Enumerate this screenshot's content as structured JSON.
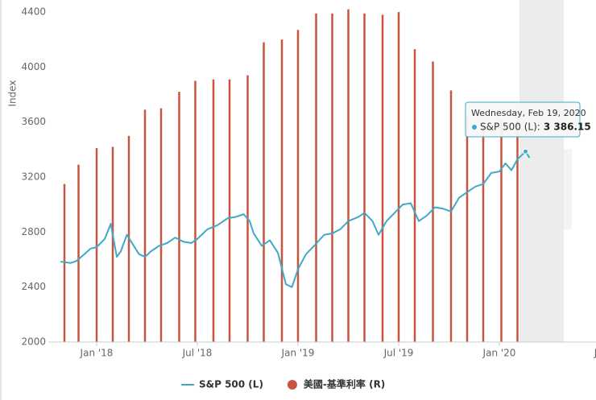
{
  "chart_data": {
    "type": "combo",
    "y_label": "Index",
    "grid": false,
    "xlim": [
      2017.82,
      2020.5
    ],
    "xticks": [
      {
        "value": 2018,
        "label": "Jan '18"
      },
      {
        "value": 2018.5,
        "label": "Jul '18"
      },
      {
        "value": 2019,
        "label": "Jan '19"
      },
      {
        "value": 2019.5,
        "label": "Jul '19"
      },
      {
        "value": 2020,
        "label": "Jan '20"
      },
      {
        "value": 2020.5,
        "label": "Jul"
      }
    ],
    "ylim": [
      2000,
      4400
    ],
    "yticks": [
      2000,
      2400,
      2800,
      3200,
      3600,
      4000,
      4400
    ],
    "series": [
      {
        "name": "S&P 500 (L)",
        "color": "#3fa9c8",
        "type": "line",
        "x": [
          2017.82,
          2017.87,
          2017.9,
          2017.94,
          2017.97,
          2018.0,
          2018.04,
          2018.07,
          2018.08,
          2018.1,
          2018.12,
          2018.15,
          2018.18,
          2018.21,
          2018.24,
          2018.27,
          2018.31,
          2018.35,
          2018.39,
          2018.43,
          2018.47,
          2018.5,
          2018.55,
          2018.6,
          2018.65,
          2018.69,
          2018.73,
          2018.76,
          2018.78,
          2018.82,
          2018.86,
          2018.9,
          2018.94,
          2018.97,
          2019.0,
          2019.04,
          2019.08,
          2019.13,
          2019.17,
          2019.21,
          2019.25,
          2019.3,
          2019.33,
          2019.37,
          2019.4,
          2019.44,
          2019.48,
          2019.52,
          2019.56,
          2019.6,
          2019.64,
          2019.68,
          2019.72,
          2019.76,
          2019.8,
          2019.84,
          2019.88,
          2019.92,
          2019.96,
          2020.0,
          2020.03,
          2020.06,
          2020.09,
          2020.13,
          2020.15
        ],
        "values": [
          2585,
          2575,
          2590,
          2640,
          2680,
          2690,
          2750,
          2860,
          2780,
          2620,
          2660,
          2780,
          2710,
          2640,
          2620,
          2660,
          2700,
          2720,
          2760,
          2730,
          2720,
          2750,
          2820,
          2850,
          2900,
          2910,
          2930,
          2880,
          2790,
          2700,
          2740,
          2650,
          2420,
          2400,
          2530,
          2640,
          2700,
          2780,
          2790,
          2820,
          2880,
          2910,
          2940,
          2880,
          2780,
          2880,
          2940,
          3000,
          3010,
          2880,
          2920,
          2980,
          2970,
          2950,
          3050,
          3090,
          3130,
          3150,
          3230,
          3240,
          3300,
          3250,
          3330,
          3386.15,
          3340
        ]
      },
      {
        "name": "美國-基準利率 (R)",
        "color": "#c9553f",
        "type": "bar",
        "x": [
          2017.84,
          2017.91,
          2018.0,
          2018.08,
          2018.16,
          2018.24,
          2018.32,
          2018.41,
          2018.49,
          2018.58,
          2018.66,
          2018.75,
          2018.83,
          2018.92,
          2019.0,
          2019.09,
          2019.17,
          2019.25,
          2019.33,
          2019.42,
          2019.5,
          2019.58,
          2019.67,
          2019.76,
          2019.84,
          2019.92,
          2020.01,
          2020.09
        ],
        "values": [
          3150,
          3290,
          3410,
          3420,
          3500,
          3690,
          3700,
          3820,
          3900,
          3910,
          3910,
          3940,
          4180,
          4200,
          4270,
          4390,
          4390,
          4420,
          4390,
          4380,
          4400,
          4130,
          4040,
          3830,
          3640,
          3610,
          3610,
          3610
        ]
      }
    ],
    "tooltip": {
      "date": "Wednesday, Feb 19, 2020",
      "label": "S&P 500 (L):",
      "value": 3386.15,
      "value_label": "3 386.15"
    }
  }
}
